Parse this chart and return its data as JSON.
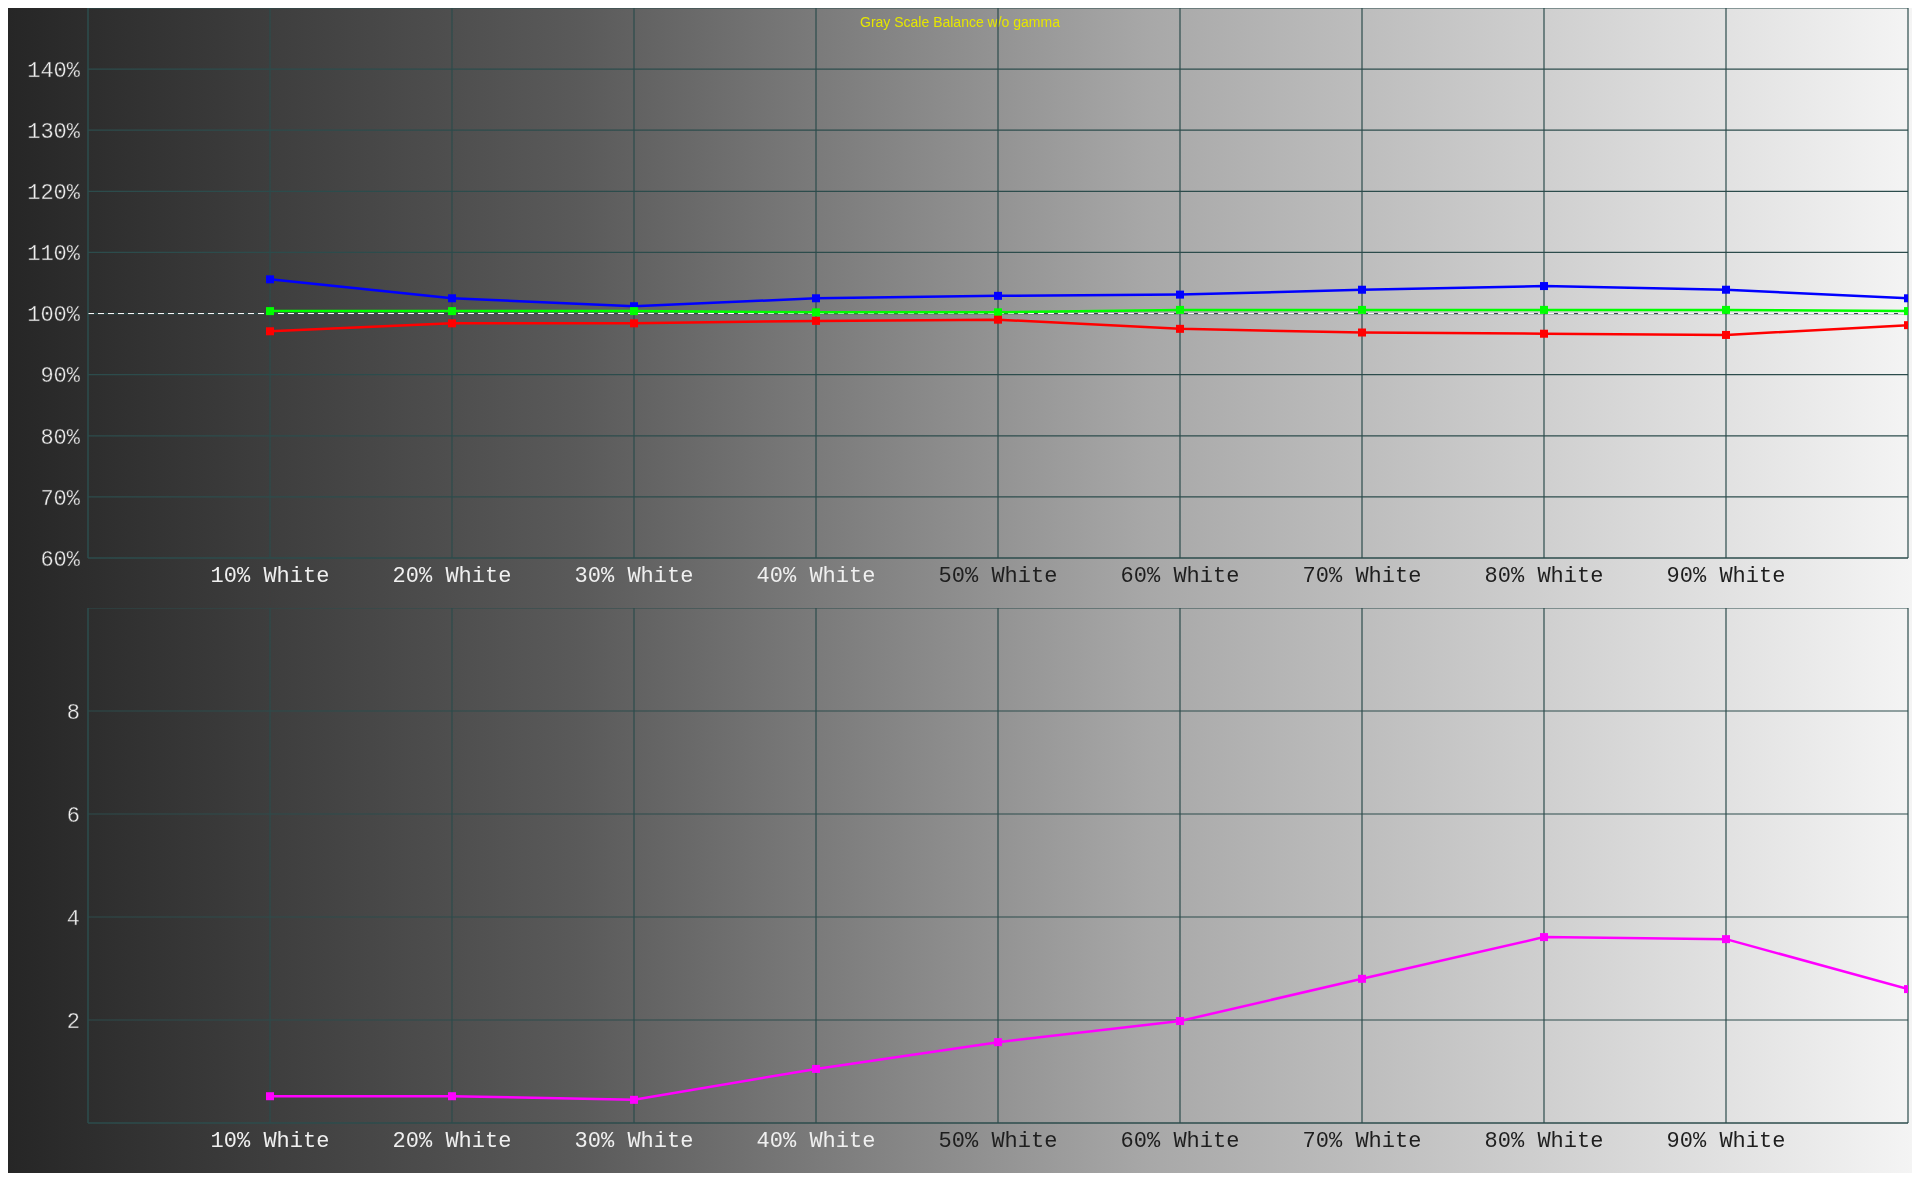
{
  "chart_data": [
    {
      "type": "line",
      "title": "Gray Scale Balance w/o gamma",
      "categories": [
        null,
        "10% White",
        "20% White",
        "30% White",
        "40% White",
        "50% White",
        "60% White",
        "70% White",
        "80% White",
        "90% White",
        null
      ],
      "series": [
        {
          "color": "#0000ff",
          "values": [
            null,
            105.6,
            102.5,
            101.2,
            102.5,
            102.9,
            103.1,
            103.9,
            104.5,
            103.9,
            102.5
          ]
        },
        {
          "color": "#00ff00",
          "values": [
            null,
            100.4,
            100.4,
            100.4,
            100.2,
            100.2,
            100.6,
            100.6,
            100.6,
            100.6,
            100.4
          ]
        },
        {
          "color": "#ff0000",
          "values": [
            null,
            97.1,
            98.4,
            98.4,
            98.8,
            99.0,
            97.5,
            96.9,
            96.7,
            96.5,
            98.1
          ]
        }
      ],
      "ylim": [
        60,
        150
      ],
      "yticks": [
        {
          "value": 60,
          "label": "60%"
        },
        {
          "value": 70,
          "label": "70%"
        },
        {
          "value": 80,
          "label": "80%"
        },
        {
          "value": 90,
          "label": "90%"
        },
        {
          "value": 100,
          "label": "100%"
        },
        {
          "value": 110,
          "label": "110%"
        },
        {
          "value": 120,
          "label": "120%"
        },
        {
          "value": 130,
          "label": "130%"
        },
        {
          "value": 140,
          "label": "140%"
        }
      ],
      "ref_lines": [
        {
          "axis": "y",
          "value": 100,
          "color": "#ffffff",
          "line_style": "dashed"
        }
      ],
      "grid": true,
      "marker": "square",
      "line_style": "solid"
    },
    {
      "type": "line",
      "categories": [
        null,
        "10% White",
        "20% White",
        "30% White",
        "40% White",
        "50% White",
        "60% White",
        "70% White",
        "80% White",
        "90% White",
        null
      ],
      "series": [
        {
          "color": "#ff00ff",
          "values": [
            null,
            0.52,
            0.52,
            0.45,
            1.05,
            1.57,
            1.98,
            2.8,
            3.61,
            3.57,
            2.6
          ]
        }
      ],
      "ylim": [
        0,
        10
      ],
      "yticks": [
        2,
        4,
        6,
        8
      ],
      "grid": true,
      "marker": "square",
      "line_style": "solid"
    }
  ]
}
